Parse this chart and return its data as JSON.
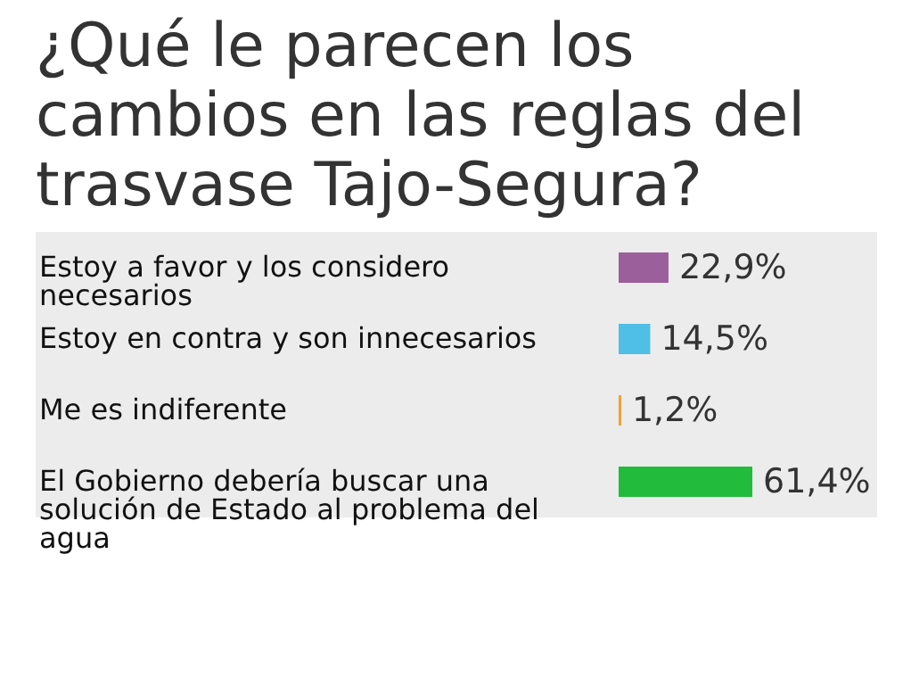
{
  "chart_data": {
    "type": "bar",
    "orientation": "horizontal",
    "title": "¿Qué le parecen los cambios en las reglas del trasvase Tajo-Segura?",
    "categories": [
      "Estoy a favor y los considero necesarios",
      "Estoy en contra y son innecesarios",
      "Me es indiferente",
      "El Gobierno debería buscar una solución de Estado al problema del agua"
    ],
    "values": [
      22.9,
      14.5,
      1.2,
      61.4
    ],
    "colors": [
      "#9b5f9b",
      "#4fbfe6",
      "#f0a030",
      "#22bb3c"
    ],
    "value_labels": [
      "22,9%",
      "14,5%",
      "1,2%",
      "61,4%"
    ]
  }
}
